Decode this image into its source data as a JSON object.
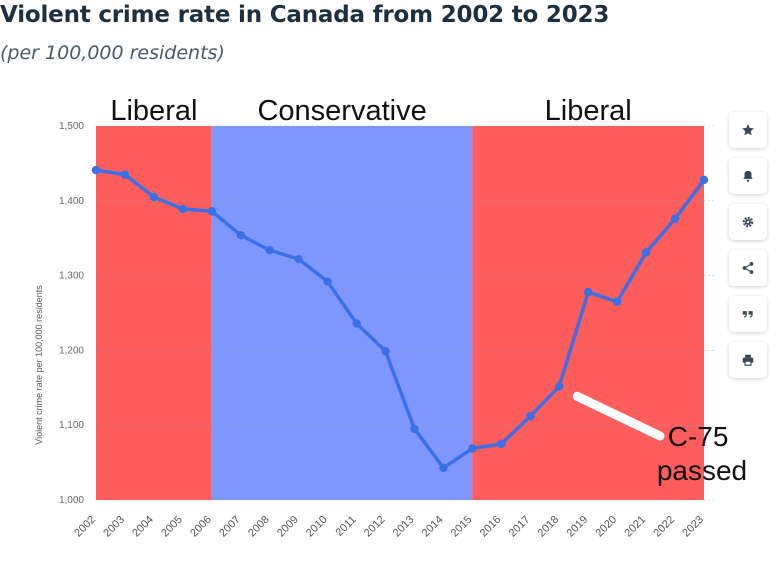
{
  "title": "Violent crime rate in Canada from 2002 to 2023",
  "subtitle": "(per 100,000 residents)",
  "chart_data": {
    "type": "line",
    "title": "Violent crime rate in Canada from 2002 to 2023",
    "subtitle": "(per 100,000 residents)",
    "ylabel": "Violent crime rate per 100,000 residents",
    "xlabel": "",
    "ylim": [
      1000,
      1500
    ],
    "yticks": [
      1000,
      1100,
      1200,
      1300,
      1400,
      1500
    ],
    "ytick_labels": [
      "1,000",
      "1,100",
      "1,200",
      "1,300",
      "1,400",
      "1,500"
    ],
    "grid": true,
    "categories": [
      "2002",
      "2003",
      "2004",
      "2005",
      "2006",
      "2007",
      "2008",
      "2009",
      "2010",
      "2011",
      "2012",
      "2013",
      "2014",
      "2015",
      "2016",
      "2017",
      "2018",
      "2019",
      "2020",
      "2021",
      "2022",
      "2023"
    ],
    "series": [
      {
        "values": [
          1441,
          1435,
          1405,
          1389,
          1386,
          1354,
          1334,
          1322,
          1292,
          1236,
          1199,
          1095,
          1043,
          1069,
          1075,
          1112,
          1152,
          1278,
          1265,
          1331,
          1376,
          1428
        ]
      }
    ],
    "line_color": "#3b6fe6",
    "regions": [
      {
        "label": "Liberal",
        "from": "2002",
        "to": "2006",
        "color": "#ff5c5c"
      },
      {
        "label": "Conservative",
        "from": "2006",
        "to": "2015",
        "color": "#8096ff"
      },
      {
        "label": "Liberal",
        "from": "2015",
        "to": "2023",
        "color": "#ff5c5c"
      }
    ],
    "annotation": {
      "lines": [
        "C-75",
        "passed"
      ],
      "points_to": "2018"
    }
  },
  "sidebar": {
    "buttons": [
      {
        "name": "star-icon"
      },
      {
        "name": "bell-icon"
      },
      {
        "name": "gear-icon"
      },
      {
        "name": "share-icon"
      },
      {
        "name": "quote-icon"
      },
      {
        "name": "print-icon"
      }
    ]
  }
}
